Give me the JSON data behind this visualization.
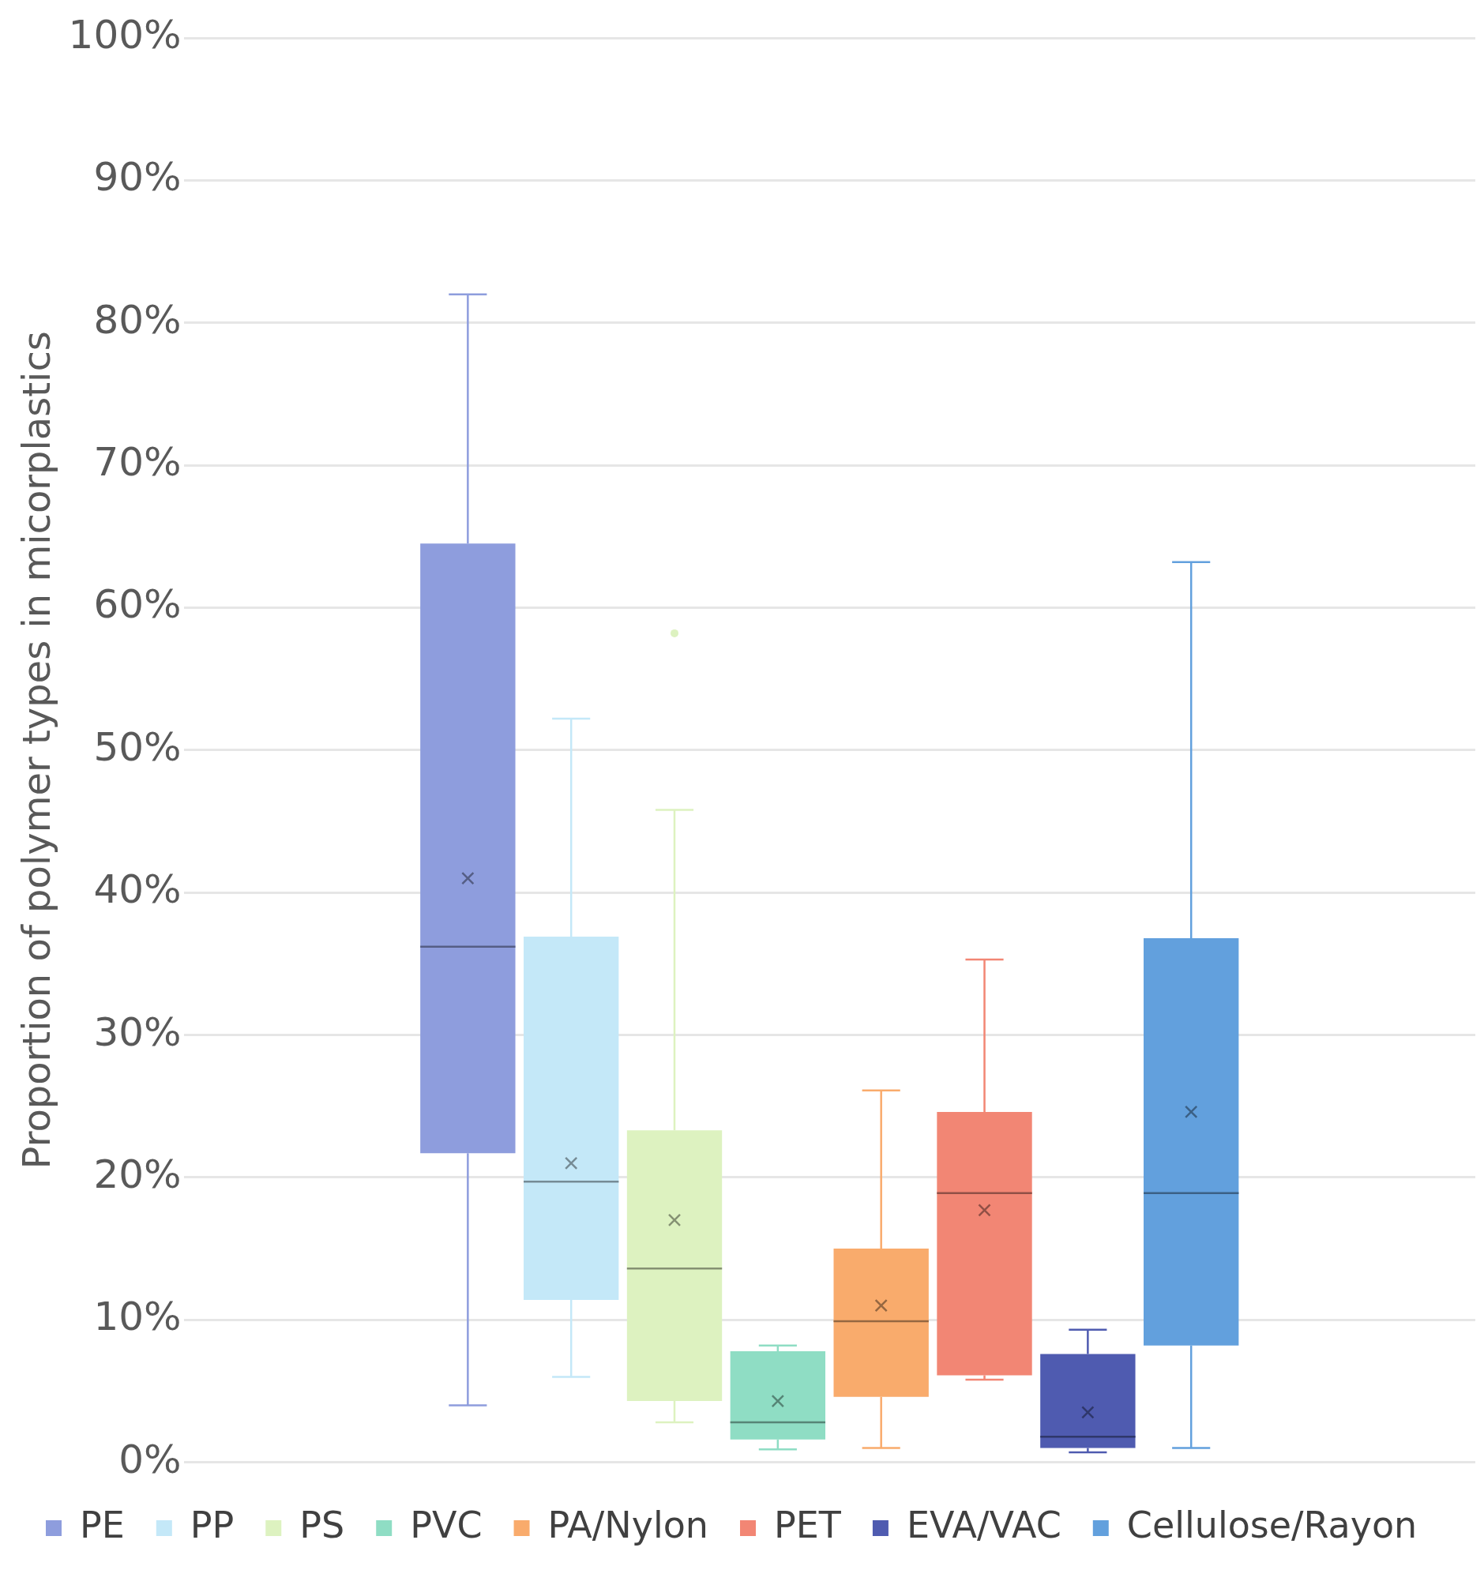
{
  "chart_data": {
    "type": "box",
    "ylabel": "Proportion of polymer types in micorplastics",
    "categories": [
      null
    ],
    "ylim": [
      0,
      100
    ],
    "yticks": [
      {
        "value": 0,
        "label": "0%"
      },
      {
        "value": 10,
        "label": "10%"
      },
      {
        "value": 20,
        "label": "20%"
      },
      {
        "value": 30,
        "label": "30%"
      },
      {
        "value": 40,
        "label": "40%"
      },
      {
        "value": 50,
        "label": "50%"
      },
      {
        "value": 60,
        "label": "60%"
      },
      {
        "value": 70,
        "label": "70%"
      },
      {
        "value": 80,
        "label": "80%"
      },
      {
        "value": 90,
        "label": "90%"
      },
      {
        "value": 100,
        "label": "100%"
      }
    ],
    "grid": "y",
    "legend": "bottom",
    "series": [
      {
        "name": "PE",
        "color": "#8e9ddd",
        "boxes": [
          {
            "low": 4,
            "q1": 21.7,
            "median": 36.2,
            "q3": 64.5,
            "high": 82,
            "mean": 41
          }
        ]
      },
      {
        "name": "PP",
        "color": "#c4e8f8",
        "boxes": [
          {
            "low": 6,
            "q1": 11.4,
            "median": 19.7,
            "q3": 36.9,
            "high": 52.2,
            "mean": 21
          }
        ]
      },
      {
        "name": "PS",
        "color": "#ddf2c0",
        "boxes": [
          {
            "low": 2.8,
            "q1": 4.3,
            "median": 13.6,
            "q3": 23.3,
            "high": 45.8,
            "mean": 17,
            "outliers": [
              58.2
            ]
          }
        ]
      },
      {
        "name": "PVC",
        "color": "#8fddc4",
        "boxes": [
          {
            "low": 0.9,
            "q1": 1.6,
            "median": 2.8,
            "q3": 7.8,
            "high": 8.2,
            "mean": 4.3
          }
        ]
      },
      {
        "name": "PA/Nylon",
        "color": "#f9ab6c",
        "boxes": [
          {
            "low": 1,
            "q1": 4.6,
            "median": 9.9,
            "q3": 15,
            "high": 26.1,
            "mean": 11
          }
        ]
      },
      {
        "name": "PET",
        "color": "#f28674",
        "boxes": [
          {
            "low": 5.8,
            "q1": 6.1,
            "median": 18.9,
            "q3": 24.6,
            "high": 35.3,
            "mean": 17.7
          }
        ]
      },
      {
        "name": "EVA/VAC",
        "color": "#4f5bb0",
        "boxes": [
          {
            "low": 0.7,
            "q1": 1,
            "median": 1.8,
            "q3": 7.6,
            "high": 9.3,
            "mean": 3.5
          }
        ]
      },
      {
        "name": "Cellulose/Rayon",
        "color": "#62a0dd",
        "boxes": [
          {
            "low": 1,
            "q1": 8.2,
            "median": 18.9,
            "q3": 36.8,
            "high": 63.2,
            "mean": 24.6
          }
        ]
      }
    ]
  }
}
